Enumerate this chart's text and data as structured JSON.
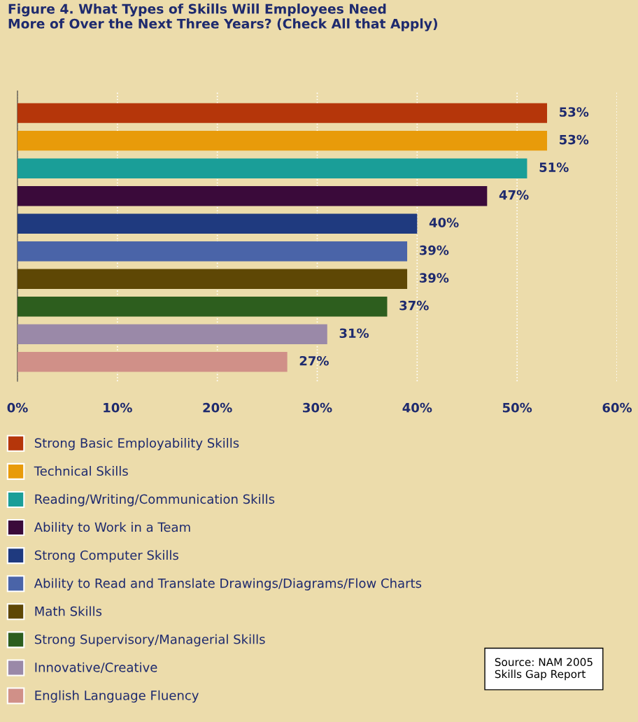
{
  "chart_data": {
    "type": "bar",
    "orientation": "horizontal",
    "title": "Figure 4. What Types of Skills Will Employees Need\nMore of Over the Next Three Years? (Check All that Apply)",
    "categories": [
      null,
      null,
      null,
      null,
      null,
      null,
      null,
      null,
      null,
      null
    ],
    "series": [
      {
        "name": "Strong Basic Employability Skills",
        "color": "#b5360a",
        "values": [
          53,
          null,
          null,
          null,
          null,
          null,
          null,
          null,
          null,
          null
        ],
        "value_labels": [
          "53%",
          null,
          null,
          null,
          null,
          null,
          null,
          null,
          null,
          null
        ]
      },
      {
        "name": "Technical Skills",
        "color": "#e89b0a",
        "values": [
          null,
          53,
          null,
          null,
          null,
          null,
          null,
          null,
          null,
          null
        ],
        "value_labels": [
          null,
          "53%",
          null,
          null,
          null,
          null,
          null,
          null,
          null,
          null
        ]
      },
      {
        "name": "Reading/Writing/Communication Skills",
        "color": "#1a9e98",
        "values": [
          null,
          null,
          51,
          null,
          null,
          null,
          null,
          null,
          null,
          null
        ],
        "value_labels": [
          null,
          null,
          "51%",
          null,
          null,
          null,
          null,
          null,
          null,
          null
        ]
      },
      {
        "name": "Ability to Work in a Team",
        "color": "#3a0a3a",
        "values": [
          null,
          null,
          null,
          47,
          null,
          null,
          null,
          null,
          null,
          null
        ],
        "value_labels": [
          null,
          null,
          null,
          "47%",
          null,
          null,
          null,
          null,
          null,
          null
        ]
      },
      {
        "name": "Strong Computer Skills",
        "color": "#1f3a7f",
        "values": [
          null,
          null,
          null,
          null,
          40,
          null,
          null,
          null,
          null,
          null
        ],
        "value_labels": [
          null,
          null,
          null,
          null,
          "40%",
          null,
          null,
          null,
          null,
          null
        ]
      },
      {
        "name": "Ability to Read and Translate Drawings/Diagrams/Flow Charts",
        "color": "#4a64a8",
        "values": [
          null,
          null,
          null,
          null,
          null,
          39,
          null,
          null,
          null,
          null
        ],
        "value_labels": [
          null,
          null,
          null,
          null,
          null,
          "39%",
          null,
          null,
          null,
          null
        ]
      },
      {
        "name": "Math Skills",
        "color": "#5e4705",
        "values": [
          null,
          null,
          null,
          null,
          null,
          null,
          39,
          null,
          null,
          null
        ],
        "value_labels": [
          null,
          null,
          null,
          null,
          null,
          null,
          "39%",
          null,
          null,
          null
        ]
      },
      {
        "name": "Strong Supervisory/Managerial Skills",
        "color": "#2d5e1e",
        "values": [
          null,
          null,
          null,
          null,
          null,
          null,
          null,
          37,
          null,
          null
        ],
        "value_labels": [
          null,
          null,
          null,
          null,
          null,
          null,
          null,
          "37%",
          null,
          null
        ]
      },
      {
        "name": "Innovative/Creative",
        "color": "#9a89a8",
        "values": [
          null,
          null,
          null,
          null,
          null,
          null,
          null,
          null,
          31,
          null
        ],
        "value_labels": [
          null,
          null,
          null,
          null,
          null,
          null,
          null,
          null,
          "31%",
          null
        ]
      },
      {
        "name": "English Language Fluency",
        "color": "#d09088",
        "values": [
          null,
          null,
          null,
          null,
          null,
          null,
          null,
          null,
          null,
          27
        ],
        "value_labels": [
          null,
          null,
          null,
          null,
          null,
          null,
          null,
          null,
          null,
          "27%"
        ]
      }
    ],
    "xlim": [
      0,
      60
    ],
    "xticks": [
      {
        "value": 0,
        "label": "0%"
      },
      {
        "value": 10,
        "label": "10%"
      },
      {
        "value": 20,
        "label": "20%"
      },
      {
        "value": 30,
        "label": "30%"
      },
      {
        "value": 40,
        "label": "40%"
      },
      {
        "value": 50,
        "label": "50%"
      },
      {
        "value": 60,
        "label": "60%"
      }
    ],
    "grid": "x",
    "legend": "bottom",
    "annotations": [
      "Source: NAM 2005\nSkills Gap Report"
    ]
  }
}
